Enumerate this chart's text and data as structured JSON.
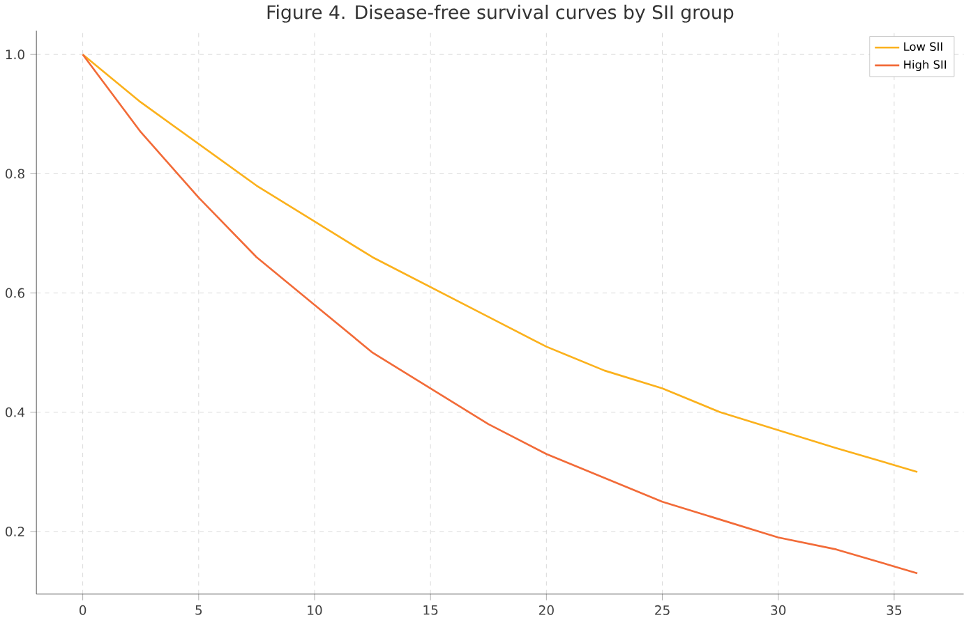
{
  "chart_data": {
    "type": "line",
    "title": "Figure 4. Disease-free survival curves by SII group",
    "x": [
      0,
      2.5,
      5,
      7.5,
      10,
      12.5,
      15,
      17.5,
      20,
      22.5,
      25,
      27.5,
      30,
      32.5,
      36
    ],
    "series": [
      {
        "name": "Low SII",
        "color": "#fbb11c",
        "values": [
          1.0,
          0.92,
          0.85,
          0.78,
          0.72,
          0.66,
          0.61,
          0.56,
          0.51,
          0.47,
          0.44,
          0.4,
          0.37,
          0.34,
          0.3
        ]
      },
      {
        "name": "High SII",
        "color": "#f26b38",
        "values": [
          1.0,
          0.87,
          0.76,
          0.66,
          0.58,
          0.5,
          0.44,
          0.38,
          0.33,
          0.29,
          0.25,
          0.22,
          0.19,
          0.17,
          0.13
        ]
      }
    ],
    "xlim": [
      -2,
      38
    ],
    "ylim": [
      0.095,
      1.04
    ],
    "xticks": [
      0,
      5,
      10,
      15,
      20,
      25,
      30,
      35
    ],
    "yticks": [
      {
        "value": 0.2,
        "label": "0.2"
      },
      {
        "value": 0.4,
        "label": "0.4"
      },
      {
        "value": 0.6,
        "label": "0.6"
      },
      {
        "value": 0.8,
        "label": "0.8"
      },
      {
        "value": 1,
        "label": "1.0"
      }
    ],
    "grid": true,
    "legend": "top right",
    "marker": "none",
    "line_style": "solid"
  }
}
